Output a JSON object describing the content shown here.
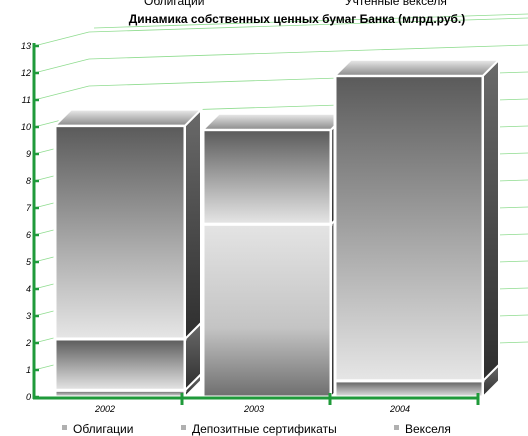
{
  "chart_data": {
    "type": "bar",
    "stacked": true,
    "title": "Динамика собственных ценных бумаг Банка (млрд.руб.)",
    "categories": [
      "2002",
      "2003",
      "2004"
    ],
    "series": [
      {
        "name": "Облигации",
        "values": [
          0.25,
          0,
          0.6
        ]
      },
      {
        "name": "Депозитные сертификаты",
        "values": [
          1.9,
          6.4,
          0
        ]
      },
      {
        "name": "Векселя",
        "values": [
          7.9,
          3.5,
          11.3
        ]
      }
    ],
    "ylim": [
      0,
      13
    ],
    "yticks": [
      "0",
      "1",
      "2",
      "3",
      "4",
      "5",
      "6",
      "7",
      "8",
      "9",
      "10",
      "11",
      "12",
      "13"
    ],
    "grid": true,
    "legend_position": "bottom",
    "colors": {
      "axis": "#1f9a3a",
      "grid": "#8fdc8f",
      "segment_dark": "#6f6f6f",
      "segment_light": "#e8e8e8",
      "legend_swatch": "#b0b0b0"
    }
  },
  "top_legend": {
    "left_text": "Облигации",
    "right_text": "Учтенные векселя"
  }
}
